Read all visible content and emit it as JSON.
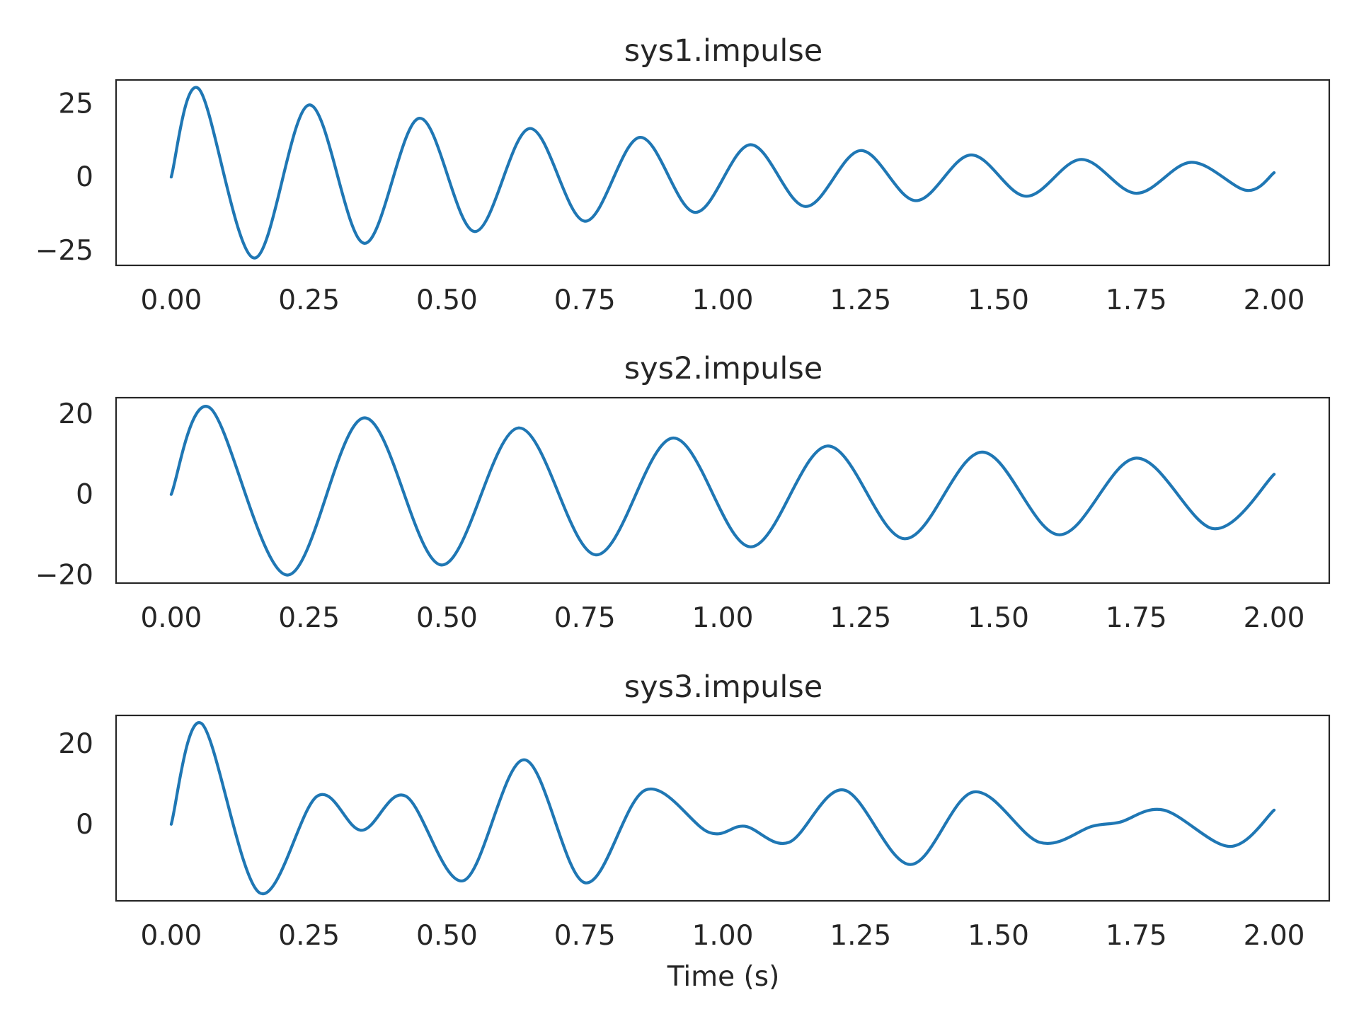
{
  "chart_data": [
    {
      "type": "line",
      "title": "sys1.impulse",
      "xlabel": "",
      "ylabel": "",
      "xlim": [
        -0.1,
        2.1
      ],
      "ylim": [
        -30,
        33
      ],
      "xticks": [
        0,
        0.25,
        0.5,
        0.75,
        1.0,
        1.25,
        1.5,
        1.75,
        2.0
      ],
      "xtick_labels": [
        "0.00",
        "0.25",
        "0.50",
        "0.75",
        "1.00",
        "1.25",
        "1.50",
        "1.75",
        "2.00"
      ],
      "yticks": [
        -25,
        0,
        25
      ],
      "ytick_labels": [
        "−25",
        "0",
        "25"
      ],
      "grid": false,
      "series": [
        {
          "color": "#1f77b4",
          "x": [
            0,
            0.05,
            0.15,
            0.25,
            0.35,
            0.45,
            0.55,
            0.65,
            0.75,
            0.85,
            0.95,
            1.05,
            1.15,
            1.25,
            1.35,
            1.45,
            1.55,
            1.65,
            1.75,
            1.85,
            1.95,
            2.0
          ],
          "y": [
            0,
            30,
            -27.5,
            24.5,
            -22.5,
            20,
            -18.5,
            16.5,
            -15,
            13.5,
            -12,
            11,
            -10,
            9,
            -8,
            7.5,
            -6.5,
            6,
            -5.5,
            5,
            -4.5,
            1.5
          ]
        }
      ]
    },
    {
      "type": "line",
      "title": "sys2.impulse",
      "xlabel": "",
      "ylabel": "",
      "xlim": [
        -0.1,
        2.1
      ],
      "ylim": [
        -22,
        24
      ],
      "xticks": [
        0,
        0.25,
        0.5,
        0.75,
        1.0,
        1.25,
        1.5,
        1.75,
        2.0
      ],
      "xtick_labels": [
        "0.00",
        "0.25",
        "0.50",
        "0.75",
        "1.00",
        "1.25",
        "1.50",
        "1.75",
        "2.00"
      ],
      "yticks": [
        -20,
        0,
        20
      ],
      "ytick_labels": [
        "−20",
        "0",
        "20"
      ],
      "grid": false,
      "series": [
        {
          "color": "#1f77b4",
          "x": [
            0,
            0.07,
            0.21,
            0.35,
            0.49,
            0.63,
            0.77,
            0.91,
            1.05,
            1.19,
            1.33,
            1.47,
            1.61,
            1.75,
            1.89,
            2.0
          ],
          "y": [
            0,
            21.5,
            -20,
            19,
            -17.5,
            16.5,
            -15,
            14,
            -13,
            12,
            -11,
            10.5,
            -10,
            9,
            -8.5,
            5
          ]
        }
      ]
    },
    {
      "type": "line",
      "title": "sys3.impulse",
      "xlabel": "Time (s)",
      "ylabel": "",
      "xlim": [
        -0.1,
        2.1
      ],
      "ylim": [
        -19,
        27
      ],
      "xticks": [
        0,
        0.25,
        0.5,
        0.75,
        1.0,
        1.25,
        1.5,
        1.75,
        2.0
      ],
      "xtick_labels": [
        "0.00",
        "0.25",
        "0.50",
        "0.75",
        "1.00",
        "1.25",
        "1.50",
        "1.75",
        "2.00"
      ],
      "yticks": [
        0,
        20
      ],
      "ytick_labels": [
        "0",
        "20"
      ],
      "grid": false,
      "series": [
        {
          "color": "#1f77b4",
          "x": [
            0,
            0.055,
            0.16,
            0.265,
            0.345,
            0.425,
            0.53,
            0.64,
            0.75,
            0.86,
            0.975,
            1.04,
            1.12,
            1.22,
            1.34,
            1.455,
            1.575,
            1.67,
            1.72,
            1.8,
            1.92,
            2.0
          ],
          "y": [
            0,
            25,
            -17,
            7,
            -1.5,
            7,
            -14,
            16,
            -14.5,
            8.5,
            -2,
            -0.5,
            -4.5,
            8.5,
            -10,
            8,
            -4.5,
            -0.5,
            0.5,
            3.5,
            -5.5,
            3.5
          ]
        }
      ]
    }
  ]
}
